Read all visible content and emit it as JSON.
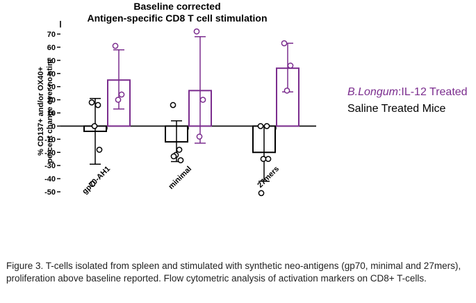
{
  "chart_data": {
    "type": "bar",
    "title": [
      "Baseline corrected",
      "Antigen-specific CD8 T cell stimulation"
    ],
    "ylabel": [
      "% CD137+ and/or OX40+",
      "percent change over no stim"
    ],
    "ylim": [
      -55,
      75
    ],
    "yticks": [
      -50,
      -40,
      -30,
      -20,
      -10,
      0,
      10,
      20,
      30,
      40,
      50,
      60,
      70
    ],
    "categories": [
      "gp70-AH1",
      "minimal",
      "27mers"
    ],
    "series": [
      {
        "name": "Saline Treated Mice",
        "color": "#000000",
        "values": [
          -4,
          -12,
          -20
        ],
        "error_low": [
          -29,
          -27,
          -42
        ],
        "error_high": [
          21,
          4,
          0
        ],
        "points": [
          [
            18,
            16,
            0,
            -18,
            -44
          ],
          [
            16,
            -18,
            -22,
            -26,
            -23
          ],
          [
            0,
            0,
            -25,
            -25,
            -51
          ]
        ]
      },
      {
        "name_parts": [
          "B.Longum",
          ":IL-12 Treated"
        ],
        "color": "#7b2d8e",
        "values": [
          35,
          27,
          44
        ],
        "error_low": [
          13,
          -13,
          26
        ],
        "error_high": [
          58,
          68,
          63
        ],
        "points": [
          [
            61,
            24,
            20
          ],
          [
            72,
            20,
            -8
          ],
          [
            63,
            46,
            27
          ]
        ]
      }
    ],
    "legend_position": "right"
  },
  "caption": "Figure 3.  T-cells isolated from spleen and stimulated with synthetic neo-antigens (gp70, minimal and 27mers), proliferation above baseline reported.  Flow cytometric analysis of activation markers on CD8+ T-cells."
}
